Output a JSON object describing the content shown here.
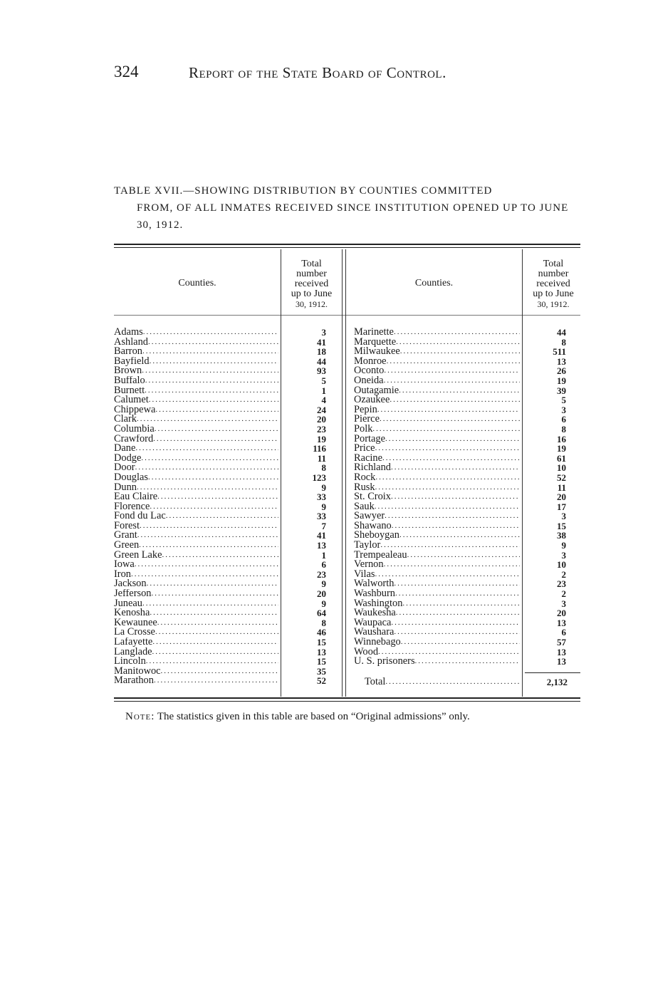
{
  "header": {
    "page_number": "324",
    "running_title": "Report of the State Board of Control."
  },
  "table": {
    "caption_line1": "TABLE XVII.—SHOWING DISTRIBUTION BY COUNTIES COMMITTED",
    "caption_rest": "FROM, OF ALL INMATES RECEIVED SINCE INSTITUTION OPENED UP TO JUNE 30, 1912.",
    "col_county": "Counties.",
    "col_total": [
      "Total",
      "number",
      "received",
      "up to June",
      "30, 1912."
    ],
    "left_rows": [
      [
        "Adams",
        "3"
      ],
      [
        "Ashland",
        "41"
      ],
      [
        "Barron",
        "18"
      ],
      [
        "Bayfield",
        "44"
      ],
      [
        "Brown",
        "93"
      ],
      [
        "Buffalo",
        "5"
      ],
      [
        "Burnett",
        "1"
      ],
      [
        "Calumet",
        "4"
      ],
      [
        "Chippewa",
        "24"
      ],
      [
        "Clark",
        "20"
      ],
      [
        "Columbia",
        "23"
      ],
      [
        "Crawford",
        "19"
      ],
      [
        "Dane",
        "116"
      ],
      [
        "Dodge",
        "11"
      ],
      [
        "Door",
        "8"
      ],
      [
        "Douglas",
        "123"
      ],
      [
        "Dunn",
        "9"
      ],
      [
        "Eau Claire",
        "33"
      ],
      [
        "Florence",
        "9"
      ],
      [
        "Fond du Lac",
        "33"
      ],
      [
        "Forest",
        "7"
      ],
      [
        "Grant",
        "41"
      ],
      [
        "Green",
        "13"
      ],
      [
        "Green Lake",
        "1"
      ],
      [
        "Iowa",
        "6"
      ],
      [
        "Iron",
        "23"
      ],
      [
        "Jackson",
        "9"
      ],
      [
        "Jefferson",
        "20"
      ],
      [
        "Juneau",
        "9"
      ],
      [
        "Kenosha",
        "64"
      ],
      [
        "Kewaunee",
        "8"
      ],
      [
        "La Crosse",
        "46"
      ],
      [
        "Lafayette",
        "15"
      ],
      [
        "Langlade",
        "13"
      ],
      [
        "Lincoln",
        "15"
      ],
      [
        "Manitowoc",
        "35"
      ],
      [
        "Marathon",
        "52"
      ]
    ],
    "right_rows": [
      [
        "Marinette",
        "44"
      ],
      [
        "Marquette",
        "8"
      ],
      [
        "Milwaukee",
        "511"
      ],
      [
        "Monroe",
        "13"
      ],
      [
        "Oconto",
        "26"
      ],
      [
        "Oneida",
        "19"
      ],
      [
        "Outagamie",
        "39"
      ],
      [
        "Ozaukee",
        "5"
      ],
      [
        "Pepin",
        "3"
      ],
      [
        "Pierce",
        "6"
      ],
      [
        "Polk",
        "8"
      ],
      [
        "Portage",
        "16"
      ],
      [
        "Price",
        "19"
      ],
      [
        "Racine",
        "61"
      ],
      [
        "Richland",
        "10"
      ],
      [
        "Rock",
        "52"
      ],
      [
        "Rusk",
        "11"
      ],
      [
        "St. Croix",
        "20"
      ],
      [
        "Sauk",
        "17"
      ],
      [
        "Sawyer",
        "3"
      ],
      [
        "Shawano",
        "15"
      ],
      [
        "Sheboygan",
        "38"
      ],
      [
        "Taylor",
        "9"
      ],
      [
        "Trempealeau",
        "3"
      ],
      [
        "Vernon",
        "10"
      ],
      [
        "Vilas",
        "2"
      ],
      [
        "Walworth",
        "23"
      ],
      [
        "Washburn",
        "2"
      ],
      [
        "Washington",
        "3"
      ],
      [
        "Waukesha",
        "20"
      ],
      [
        "Waupaca",
        "13"
      ],
      [
        "Waushara",
        "6"
      ],
      [
        "Winnebago",
        "57"
      ],
      [
        "Wood",
        "13"
      ],
      [
        "U. S. prisoners",
        "13"
      ]
    ],
    "total_label": "Total",
    "total_value": "2,132"
  },
  "note": {
    "label": "Note:",
    "text": "The statistics given in this table are based on “Original admissions” only."
  }
}
